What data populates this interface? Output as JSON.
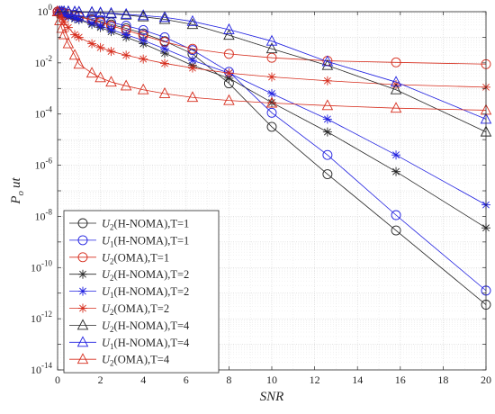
{
  "chart_data": {
    "type": "line",
    "title": "",
    "xlabel": "SNR",
    "ylabel": "P_o ut",
    "ylabel_parts": {
      "main": "P",
      "sub": "o",
      "rest": "ut"
    },
    "xlim": [
      0,
      20
    ],
    "ylim_log10": [
      -14,
      0
    ],
    "yscale": "log",
    "grid": true,
    "legend_position": "bottom-left",
    "x_ticks": [
      "0",
      "2",
      "4",
      "6",
      "8",
      "10",
      "12",
      "14",
      "16",
      "18",
      "20"
    ],
    "y_ticks": [
      {
        "base": "10",
        "exp": "0"
      },
      {
        "base": "10",
        "exp": "-2"
      },
      {
        "base": "10",
        "exp": "-4"
      },
      {
        "base": "10",
        "exp": "-6"
      },
      {
        "base": "10",
        "exp": "-8"
      },
      {
        "base": "10",
        "exp": "-10"
      },
      {
        "base": "10",
        "exp": "-12"
      },
      {
        "base": "10",
        "exp": "-14"
      }
    ],
    "x": [
      0,
      0.1,
      0.2,
      0.3,
      0.5,
      0.8,
      1.0,
      1.6,
      2.0,
      2.5,
      3.2,
      4.0,
      5.0,
      6.3,
      8.0,
      10.0,
      12.6,
      15.8,
      20.0
    ],
    "series": [
      {
        "name": "U2(H-NOMA),T=1",
        "legend_base": "U",
        "legend_sub": "2",
        "legend_rest": "(H-NOMA),T=1",
        "color": "#262626",
        "marker": "circle",
        "log10_values": [
          0,
          -0.02,
          -0.04,
          -0.06,
          -0.1,
          -0.15,
          -0.18,
          -0.3,
          -0.38,
          -0.5,
          -0.65,
          -0.85,
          -1.15,
          -1.65,
          -2.8,
          -4.5,
          -6.35,
          -8.55,
          -11.45
        ]
      },
      {
        "name": "U1(H-NOMA),T=1",
        "legend_base": "U",
        "legend_sub": "1",
        "legend_rest": "(H-NOMA),T=1",
        "color": "#1f1fe0",
        "marker": "circle",
        "log10_values": [
          0,
          -0.015,
          -0.03,
          -0.045,
          -0.08,
          -0.12,
          -0.15,
          -0.25,
          -0.32,
          -0.42,
          -0.55,
          -0.72,
          -1.0,
          -1.5,
          -2.35,
          -3.95,
          -5.6,
          -7.95,
          -10.9
        ]
      },
      {
        "name": "U2(OMA),T=1",
        "legend_base": "U",
        "legend_sub": "2",
        "legend_rest": "(OMA),T=1",
        "color": "#d62c1c",
        "marker": "circle",
        "log10_values": [
          0,
          -0.02,
          -0.04,
          -0.06,
          -0.1,
          -0.16,
          -0.2,
          -0.33,
          -0.42,
          -0.55,
          -0.72,
          -0.93,
          -1.18,
          -1.45,
          -1.65,
          -1.8,
          -1.92,
          -1.98,
          -2.05
        ]
      },
      {
        "name": "U2(H-NOMA),T=2",
        "legend_base": "U",
        "legend_sub": "2",
        "legend_rest": "(H-NOMA),T=2",
        "color": "#262626",
        "marker": "star",
        "log10_values": [
          0,
          -0.05,
          -0.1,
          -0.14,
          -0.2,
          -0.28,
          -0.32,
          -0.5,
          -0.62,
          -0.78,
          -1.0,
          -1.25,
          -1.62,
          -2.1,
          -2.6,
          -3.55,
          -4.7,
          -6.25,
          -8.45
        ]
      },
      {
        "name": "U1(H-NOMA),T=2",
        "legend_base": "U",
        "legend_sub": "1",
        "legend_rest": "(H-NOMA),T=2",
        "color": "#1f1fe0",
        "marker": "star",
        "log10_values": [
          0,
          -0.04,
          -0.08,
          -0.12,
          -0.18,
          -0.25,
          -0.29,
          -0.45,
          -0.56,
          -0.7,
          -0.9,
          -1.12,
          -1.45,
          -1.9,
          -2.4,
          -3.2,
          -4.2,
          -5.6,
          -7.55
        ]
      },
      {
        "name": "U2(OMA),T=2",
        "legend_base": "U",
        "legend_sub": "2",
        "legend_rest": "(OMA),T=2",
        "color": "#d62c1c",
        "marker": "star",
        "log10_values": [
          0,
          -0.12,
          -0.25,
          -0.4,
          -0.62,
          -0.9,
          -1.0,
          -1.25,
          -1.4,
          -1.55,
          -1.7,
          -1.85,
          -2.02,
          -2.2,
          -2.4,
          -2.55,
          -2.7,
          -2.85,
          -2.95
        ]
      },
      {
        "name": "U2(H-NOMA),T=4",
        "legend_base": "U",
        "legend_sub": "2",
        "legend_rest": "(H-NOMA),T=4",
        "color": "#262626",
        "marker": "triangle",
        "log10_values": [
          0,
          0,
          0,
          0,
          0,
          -0.01,
          -0.015,
          -0.03,
          -0.05,
          -0.08,
          -0.13,
          -0.2,
          -0.3,
          -0.5,
          -0.92,
          -1.45,
          -2.1,
          -3.05,
          -4.7
        ]
      },
      {
        "name": "U1(H-NOMA),T=4",
        "legend_base": "U",
        "legend_sub": "1",
        "legend_rest": "(H-NOMA),T=4",
        "color": "#1f1fe0",
        "marker": "triangle",
        "log10_values": [
          0,
          0,
          0,
          0,
          0,
          -0.005,
          -0.01,
          -0.02,
          -0.04,
          -0.06,
          -0.1,
          -0.15,
          -0.22,
          -0.38,
          -0.7,
          -1.15,
          -1.95,
          -2.75,
          -4.2
        ]
      },
      {
        "name": "U2(OMA),T=4",
        "legend_base": "U",
        "legend_sub": "2",
        "legend_rest": "(OMA),T=4",
        "color": "#d62c1c",
        "marker": "triangle",
        "log10_values": [
          0,
          -0.35,
          -0.65,
          -0.9,
          -1.25,
          -1.7,
          -2.05,
          -2.4,
          -2.58,
          -2.75,
          -2.9,
          -3.05,
          -3.2,
          -3.35,
          -3.47,
          -3.57,
          -3.67,
          -3.77,
          -3.85
        ]
      }
    ]
  }
}
